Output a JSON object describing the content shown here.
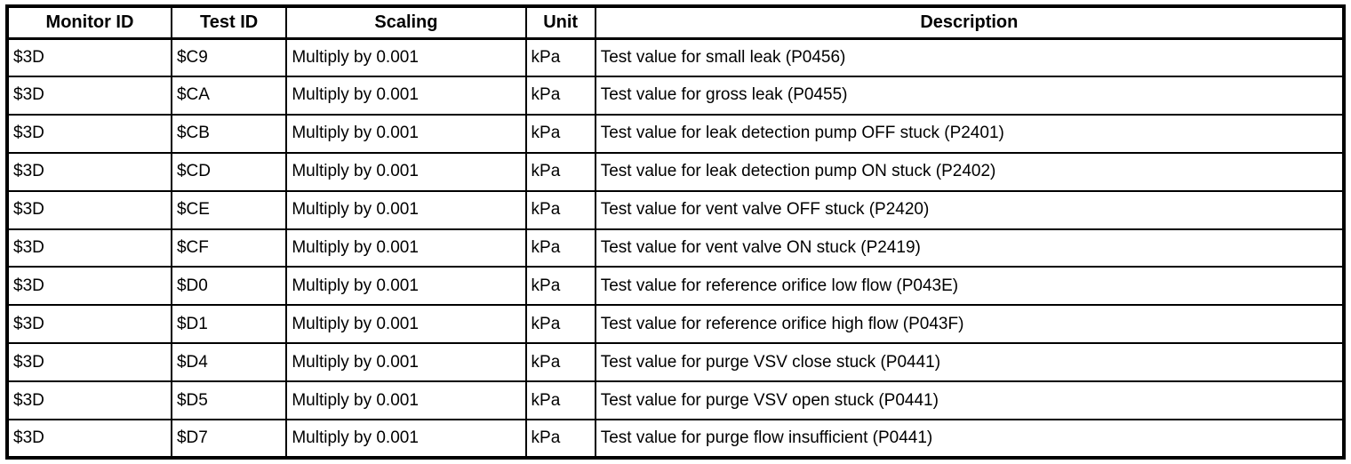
{
  "table": {
    "columns": [
      {
        "key": "monitor-id",
        "label": "Monitor ID"
      },
      {
        "key": "test-id",
        "label": "Test ID"
      },
      {
        "key": "scaling",
        "label": "Scaling"
      },
      {
        "key": "unit",
        "label": "Unit"
      },
      {
        "key": "description",
        "label": "Description"
      }
    ],
    "rows": [
      [
        "$3D",
        "$C9",
        "Multiply by 0.001",
        "kPa",
        "Test value for small leak (P0456)"
      ],
      [
        "$3D",
        "$CA",
        "Multiply by 0.001",
        "kPa",
        "Test value for gross leak (P0455)"
      ],
      [
        "$3D",
        "$CB",
        "Multiply by 0.001",
        "kPa",
        "Test value for leak detection pump OFF stuck (P2401)"
      ],
      [
        "$3D",
        "$CD",
        "Multiply by 0.001",
        "kPa",
        "Test value for leak detection pump ON stuck (P2402)"
      ],
      [
        "$3D",
        "$CE",
        "Multiply by 0.001",
        "kPa",
        "Test value for vent valve OFF stuck (P2420)"
      ],
      [
        "$3D",
        "$CF",
        "Multiply by 0.001",
        "kPa",
        "Test value for vent valve ON stuck (P2419)"
      ],
      [
        "$3D",
        "$D0",
        "Multiply by 0.001",
        "kPa",
        "Test value for reference orifice low flow (P043E)"
      ],
      [
        "$3D",
        "$D1",
        "Multiply by 0.001",
        "kPa",
        "Test value for reference orifice high flow (P043F)"
      ],
      [
        "$3D",
        "$D4",
        "Multiply by 0.001",
        "kPa",
        "Test value for purge VSV close stuck (P0441)"
      ],
      [
        "$3D",
        "$D5",
        "Multiply by 0.001",
        "kPa",
        "Test value for purge VSV open stuck (P0441)"
      ],
      [
        "$3D",
        "$D7",
        "Multiply by 0.001",
        "kPa",
        "Test value for purge flow insufficient (P0441)"
      ]
    ],
    "style": {
      "border_color": "#000000",
      "background_color": "#ffffff",
      "text_color": "#000000"
    }
  }
}
